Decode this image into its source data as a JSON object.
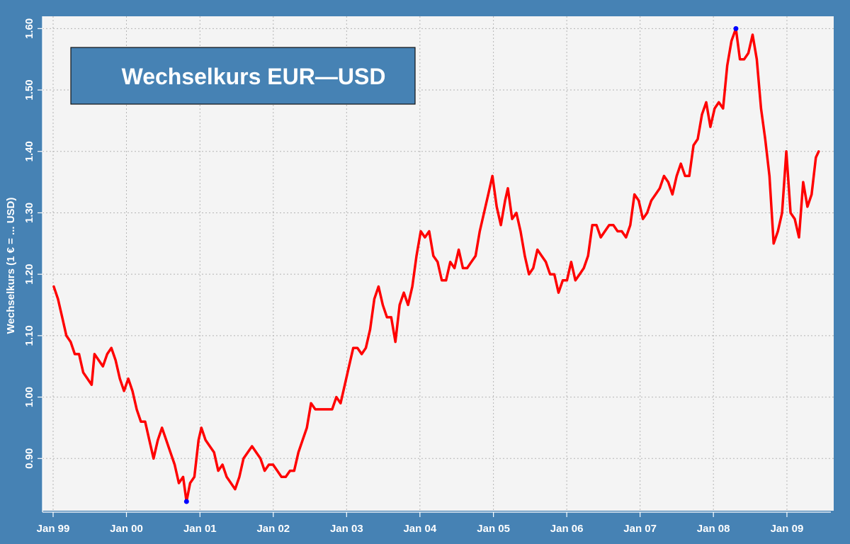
{
  "chart_data": {
    "type": "line",
    "title": "Wechselkurs EUR—USD",
    "xlabel": "",
    "ylabel": "Wechselkurs (1 € = ... USD)",
    "ylim": [
      0.815,
      1.62
    ],
    "xlim": [
      "1999-01-01",
      "2009-06-30"
    ],
    "grid": true,
    "legend": "none",
    "x_ticks": [
      {
        "date": "1999-01-01",
        "label": "Jan 99"
      },
      {
        "date": "2000-01-01",
        "label": "Jan 00"
      },
      {
        "date": "2001-01-01",
        "label": "Jan 01"
      },
      {
        "date": "2002-01-01",
        "label": "Jan 02"
      },
      {
        "date": "2003-01-01",
        "label": "Jan 03"
      },
      {
        "date": "2004-01-01",
        "label": "Jan 04"
      },
      {
        "date": "2005-01-01",
        "label": "Jan 05"
      },
      {
        "date": "2006-01-01",
        "label": "Jan 06"
      },
      {
        "date": "2007-01-01",
        "label": "Jan 07"
      },
      {
        "date": "2008-01-01",
        "label": "Jan 08"
      },
      {
        "date": "2009-01-01",
        "label": "Jan 09"
      }
    ],
    "y_ticks": [
      {
        "value": 0.9,
        "label": "0.90"
      },
      {
        "value": 1.0,
        "label": "1.00"
      },
      {
        "value": 1.1,
        "label": "1.10"
      },
      {
        "value": 1.2,
        "label": "1.20"
      },
      {
        "value": 1.3,
        "label": "1.30"
      },
      {
        "value": 1.4,
        "label": "1.40"
      },
      {
        "value": 1.5,
        "label": "1.50"
      },
      {
        "value": 1.6,
        "label": "1.60"
      }
    ],
    "series": [
      {
        "color": "#ff0000",
        "points": [
          [
            "1999-01-04",
            1.18
          ],
          [
            "1999-01-25",
            1.16
          ],
          [
            "1999-02-15",
            1.13
          ],
          [
            "1999-03-08",
            1.1
          ],
          [
            "1999-03-29",
            1.09
          ],
          [
            "1999-04-19",
            1.07
          ],
          [
            "1999-05-10",
            1.07
          ],
          [
            "1999-05-31",
            1.04
          ],
          [
            "1999-06-21",
            1.03
          ],
          [
            "1999-07-12",
            1.02
          ],
          [
            "1999-07-26",
            1.07
          ],
          [
            "1999-08-16",
            1.06
          ],
          [
            "1999-09-06",
            1.05
          ],
          [
            "1999-09-27",
            1.07
          ],
          [
            "1999-10-18",
            1.08
          ],
          [
            "1999-11-08",
            1.06
          ],
          [
            "1999-11-29",
            1.03
          ],
          [
            "1999-12-20",
            1.01
          ],
          [
            "2000-01-10",
            1.03
          ],
          [
            "2000-01-31",
            1.01
          ],
          [
            "2000-02-21",
            0.98
          ],
          [
            "2000-03-13",
            0.96
          ],
          [
            "2000-04-03",
            0.96
          ],
          [
            "2000-04-24",
            0.93
          ],
          [
            "2000-05-15",
            0.9
          ],
          [
            "2000-06-05",
            0.93
          ],
          [
            "2000-06-26",
            0.95
          ],
          [
            "2000-07-17",
            0.93
          ],
          [
            "2000-08-07",
            0.91
          ],
          [
            "2000-08-28",
            0.89
          ],
          [
            "2000-09-18",
            0.86
          ],
          [
            "2000-10-09",
            0.87
          ],
          [
            "2000-10-26",
            0.83
          ],
          [
            "2000-11-13",
            0.86
          ],
          [
            "2000-12-04",
            0.87
          ],
          [
            "2000-12-25",
            0.93
          ],
          [
            "2001-01-08",
            0.95
          ],
          [
            "2001-01-29",
            0.93
          ],
          [
            "2001-02-19",
            0.92
          ],
          [
            "2001-03-12",
            0.91
          ],
          [
            "2001-04-02",
            0.88
          ],
          [
            "2001-04-23",
            0.89
          ],
          [
            "2001-05-14",
            0.87
          ],
          [
            "2001-06-04",
            0.86
          ],
          [
            "2001-06-25",
            0.85
          ],
          [
            "2001-07-16",
            0.87
          ],
          [
            "2001-08-06",
            0.9
          ],
          [
            "2001-08-27",
            0.91
          ],
          [
            "2001-09-17",
            0.92
          ],
          [
            "2001-10-08",
            0.91
          ],
          [
            "2001-10-29",
            0.9
          ],
          [
            "2001-11-19",
            0.88
          ],
          [
            "2001-12-10",
            0.89
          ],
          [
            "2001-12-31",
            0.89
          ],
          [
            "2002-01-21",
            0.88
          ],
          [
            "2002-02-11",
            0.87
          ],
          [
            "2002-03-04",
            0.87
          ],
          [
            "2002-03-25",
            0.88
          ],
          [
            "2002-04-15",
            0.88
          ],
          [
            "2002-05-06",
            0.91
          ],
          [
            "2002-05-27",
            0.93
          ],
          [
            "2002-06-17",
            0.95
          ],
          [
            "2002-07-08",
            0.99
          ],
          [
            "2002-07-29",
            0.98
          ],
          [
            "2002-08-19",
            0.98
          ],
          [
            "2002-09-09",
            0.98
          ],
          [
            "2002-09-30",
            0.98
          ],
          [
            "2002-10-21",
            0.98
          ],
          [
            "2002-11-11",
            1.0
          ],
          [
            "2002-12-02",
            0.99
          ],
          [
            "2002-12-23",
            1.02
          ],
          [
            "2003-01-13",
            1.05
          ],
          [
            "2003-02-03",
            1.08
          ],
          [
            "2003-02-24",
            1.08
          ],
          [
            "2003-03-17",
            1.07
          ],
          [
            "2003-04-07",
            1.08
          ],
          [
            "2003-04-28",
            1.11
          ],
          [
            "2003-05-19",
            1.16
          ],
          [
            "2003-06-09",
            1.18
          ],
          [
            "2003-06-30",
            1.15
          ],
          [
            "2003-07-21",
            1.13
          ],
          [
            "2003-08-11",
            1.13
          ],
          [
            "2003-09-01",
            1.09
          ],
          [
            "2003-09-22",
            1.15
          ],
          [
            "2003-10-13",
            1.17
          ],
          [
            "2003-11-03",
            1.15
          ],
          [
            "2003-11-24",
            1.18
          ],
          [
            "2003-12-15",
            1.23
          ],
          [
            "2004-01-05",
            1.27
          ],
          [
            "2004-01-26",
            1.26
          ],
          [
            "2004-02-16",
            1.27
          ],
          [
            "2004-03-08",
            1.23
          ],
          [
            "2004-03-29",
            1.22
          ],
          [
            "2004-04-19",
            1.19
          ],
          [
            "2004-05-10",
            1.19
          ],
          [
            "2004-05-31",
            1.22
          ],
          [
            "2004-06-21",
            1.21
          ],
          [
            "2004-07-12",
            1.24
          ],
          [
            "2004-08-02",
            1.21
          ],
          [
            "2004-08-23",
            1.21
          ],
          [
            "2004-09-13",
            1.22
          ],
          [
            "2004-10-04",
            1.23
          ],
          [
            "2004-10-25",
            1.27
          ],
          [
            "2004-11-15",
            1.3
          ],
          [
            "2004-12-06",
            1.33
          ],
          [
            "2004-12-27",
            1.36
          ],
          [
            "2005-01-17",
            1.31
          ],
          [
            "2005-02-07",
            1.28
          ],
          [
            "2005-02-28",
            1.32
          ],
          [
            "2005-03-14",
            1.34
          ],
          [
            "2005-04-04",
            1.29
          ],
          [
            "2005-04-25",
            1.3
          ],
          [
            "2005-05-16",
            1.27
          ],
          [
            "2005-06-06",
            1.23
          ],
          [
            "2005-06-27",
            1.2
          ],
          [
            "2005-07-18",
            1.21
          ],
          [
            "2005-08-08",
            1.24
          ],
          [
            "2005-08-29",
            1.23
          ],
          [
            "2005-09-19",
            1.22
          ],
          [
            "2005-10-10",
            1.2
          ],
          [
            "2005-10-31",
            1.2
          ],
          [
            "2005-11-21",
            1.17
          ],
          [
            "2005-12-12",
            1.19
          ],
          [
            "2006-01-02",
            1.19
          ],
          [
            "2006-01-23",
            1.22
          ],
          [
            "2006-02-13",
            1.19
          ],
          [
            "2006-03-06",
            1.2
          ],
          [
            "2006-03-27",
            1.21
          ],
          [
            "2006-04-17",
            1.23
          ],
          [
            "2006-05-08",
            1.28
          ],
          [
            "2006-05-29",
            1.28
          ],
          [
            "2006-06-19",
            1.26
          ],
          [
            "2006-07-10",
            1.27
          ],
          [
            "2006-07-31",
            1.28
          ],
          [
            "2006-08-21",
            1.28
          ],
          [
            "2006-09-11",
            1.27
          ],
          [
            "2006-10-02",
            1.27
          ],
          [
            "2006-10-23",
            1.26
          ],
          [
            "2006-11-13",
            1.28
          ],
          [
            "2006-12-04",
            1.33
          ],
          [
            "2006-12-25",
            1.32
          ],
          [
            "2007-01-15",
            1.29
          ],
          [
            "2007-02-05",
            1.3
          ],
          [
            "2007-02-26",
            1.32
          ],
          [
            "2007-03-19",
            1.33
          ],
          [
            "2007-04-09",
            1.34
          ],
          [
            "2007-04-30",
            1.36
          ],
          [
            "2007-05-21",
            1.35
          ],
          [
            "2007-06-11",
            1.33
          ],
          [
            "2007-07-02",
            1.36
          ],
          [
            "2007-07-23",
            1.38
          ],
          [
            "2007-08-13",
            1.36
          ],
          [
            "2007-09-03",
            1.36
          ],
          [
            "2007-09-24",
            1.41
          ],
          [
            "2007-10-15",
            1.42
          ],
          [
            "2007-11-05",
            1.46
          ],
          [
            "2007-11-26",
            1.48
          ],
          [
            "2007-12-17",
            1.44
          ],
          [
            "2008-01-07",
            1.47
          ],
          [
            "2008-01-28",
            1.48
          ],
          [
            "2008-02-18",
            1.47
          ],
          [
            "2008-03-10",
            1.54
          ],
          [
            "2008-03-31",
            1.58
          ],
          [
            "2008-04-22",
            1.6
          ],
          [
            "2008-05-12",
            1.55
          ],
          [
            "2008-06-02",
            1.55
          ],
          [
            "2008-06-23",
            1.56
          ],
          [
            "2008-07-14",
            1.59
          ],
          [
            "2008-08-04",
            1.55
          ],
          [
            "2008-08-25",
            1.47
          ],
          [
            "2008-09-15",
            1.42
          ],
          [
            "2008-10-06",
            1.36
          ],
          [
            "2008-10-27",
            1.25
          ],
          [
            "2008-11-17",
            1.27
          ],
          [
            "2008-12-08",
            1.3
          ],
          [
            "2008-12-29",
            1.4
          ],
          [
            "2009-01-19",
            1.3
          ],
          [
            "2009-02-09",
            1.29
          ],
          [
            "2009-03-02",
            1.26
          ],
          [
            "2009-03-23",
            1.35
          ],
          [
            "2009-04-13",
            1.31
          ],
          [
            "2009-05-04",
            1.33
          ],
          [
            "2009-05-25",
            1.39
          ],
          [
            "2009-06-08",
            1.4
          ]
        ]
      }
    ],
    "markers": [
      {
        "date": "2000-10-26",
        "value": 0.83,
        "color": "#0000ff"
      },
      {
        "date": "2008-04-22",
        "value": 1.6,
        "color": "#0000ff"
      }
    ]
  },
  "colors": {
    "background": "#4682b4",
    "plot_area": "#f4f4f4",
    "line": "#ff0000",
    "marker": "#0000ff",
    "title_box": "#4682b4"
  }
}
